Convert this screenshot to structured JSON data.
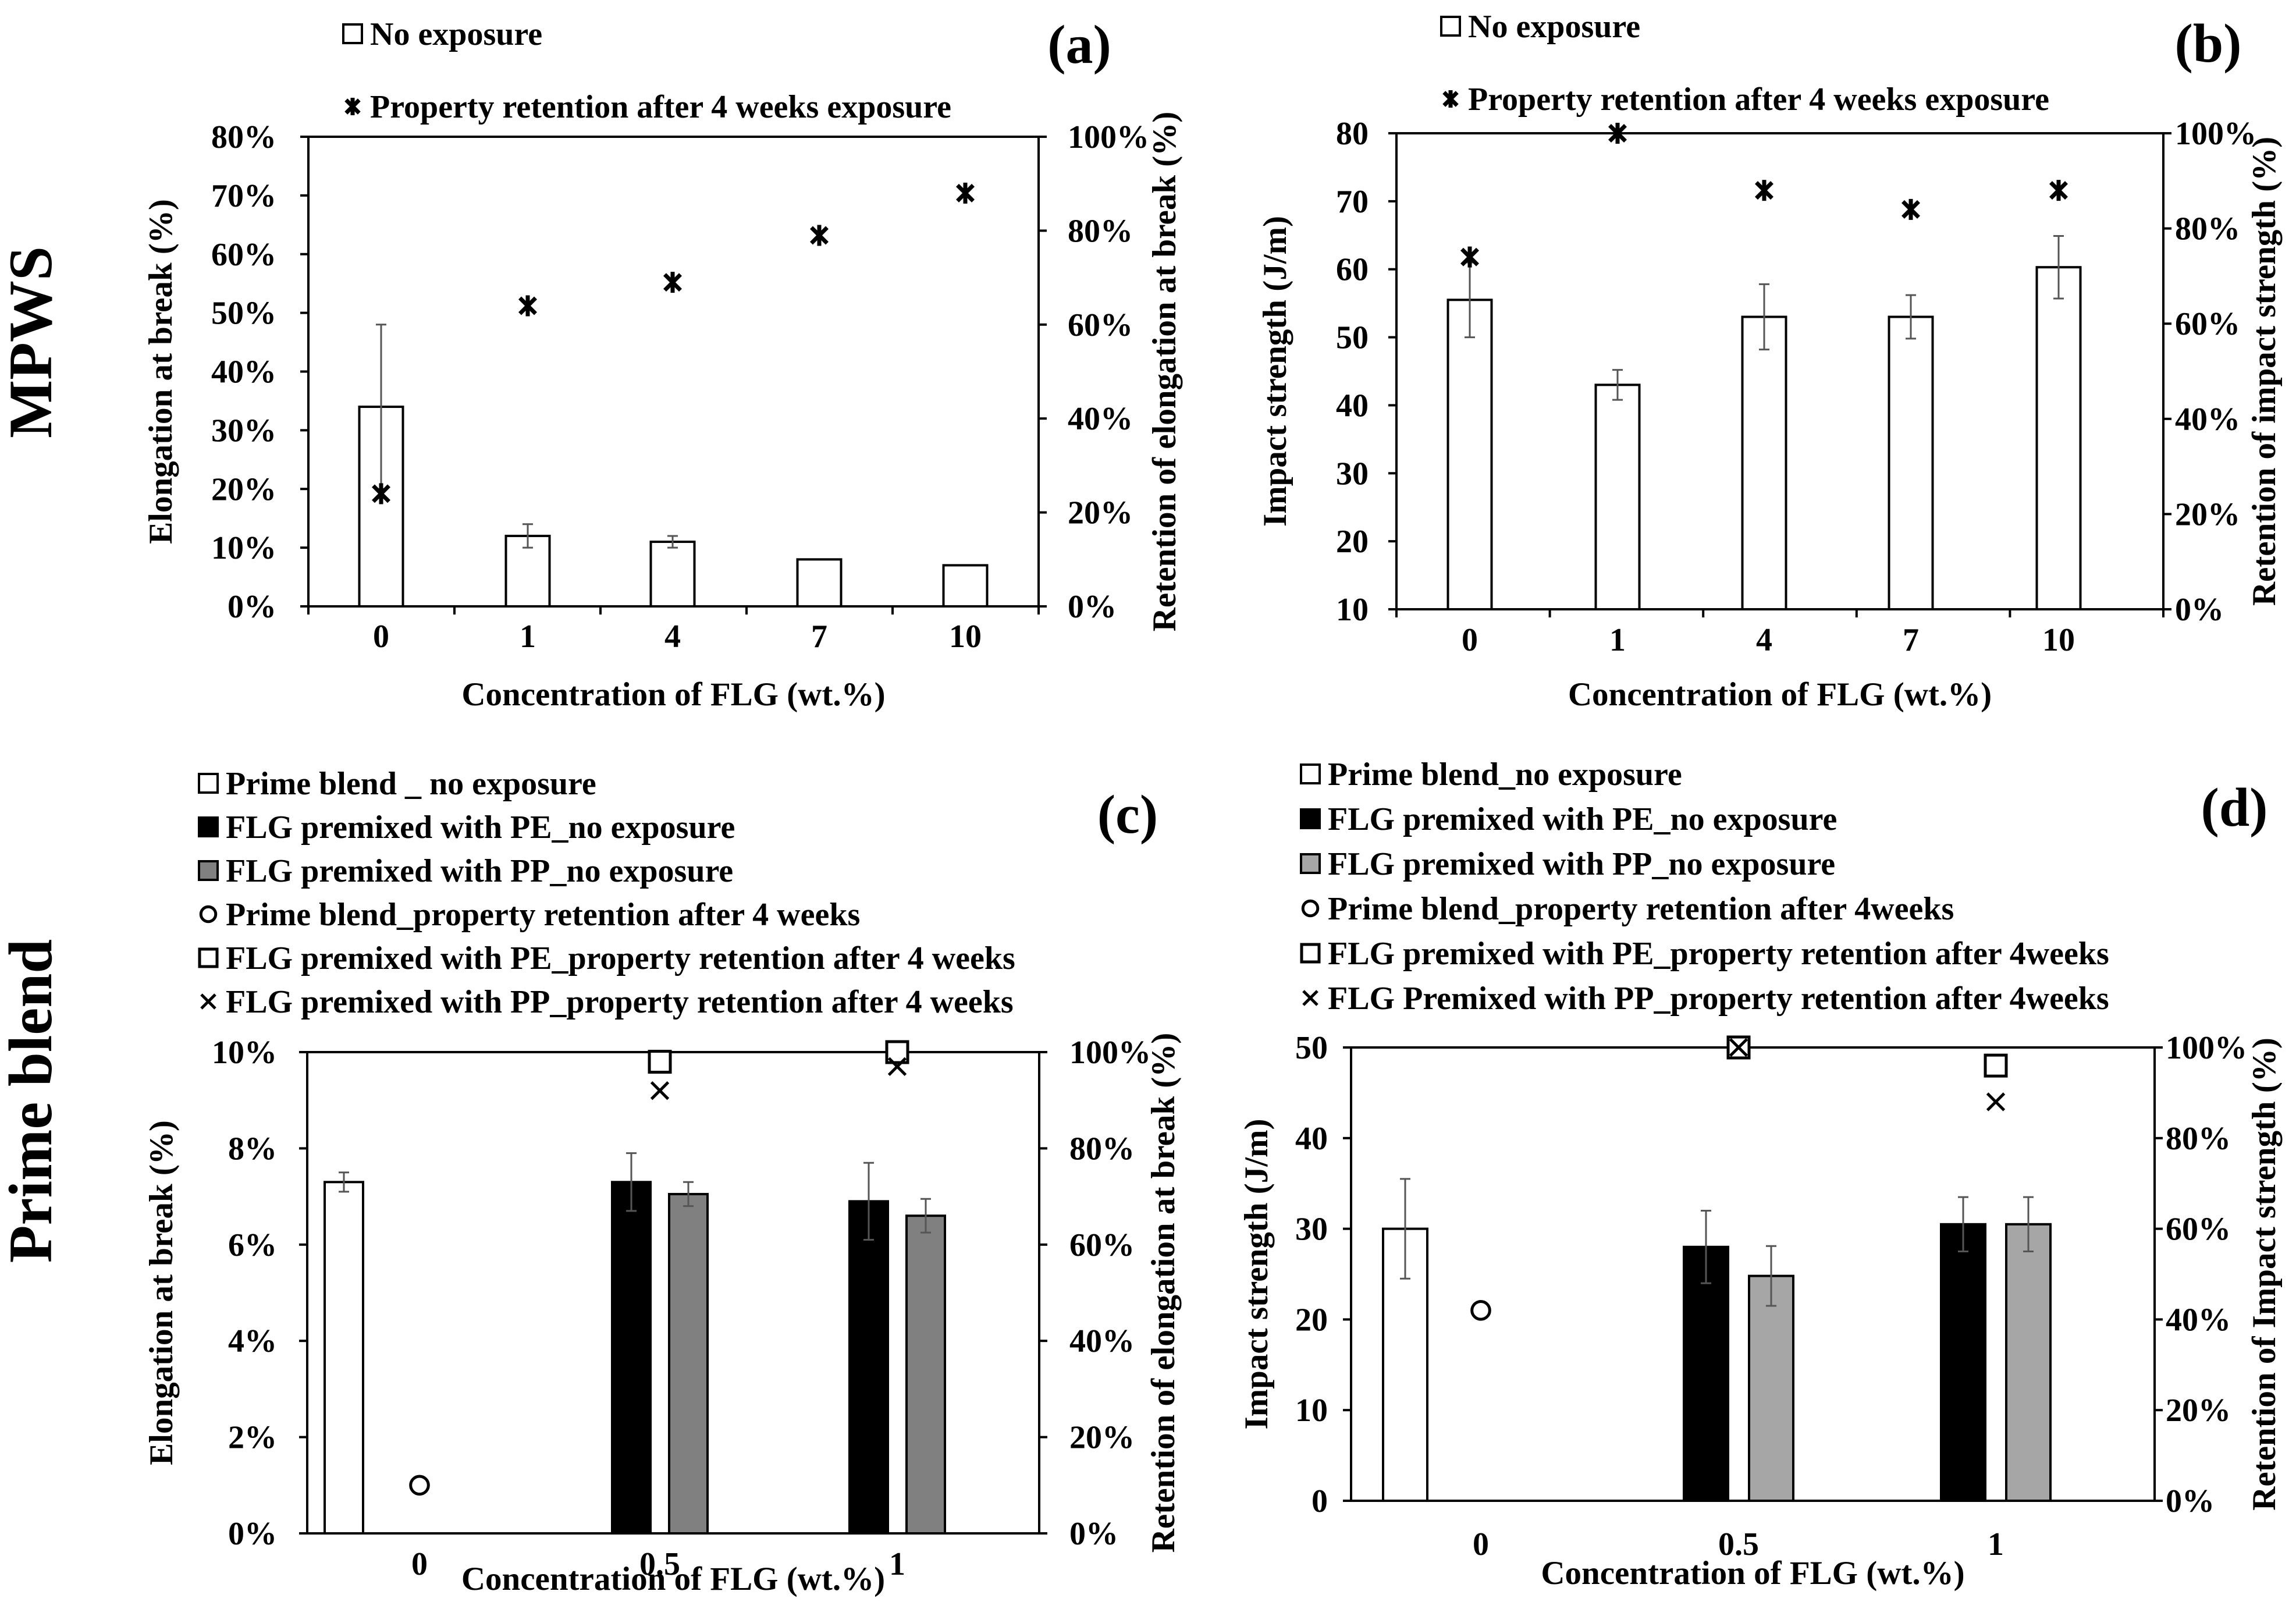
{
  "row_labels": [
    "MPWS",
    "Prime blend"
  ],
  "chart_data": [
    {
      "panel": "(a)",
      "type": "bar",
      "categories": [
        "0",
        "1",
        "4",
        "7",
        "10"
      ],
      "xlabel": "Concentration of FLG (wt.%)",
      "ylabel": "Elongation at break (%)",
      "ylim": [
        0,
        80
      ],
      "yticks": [
        "0%",
        "10%",
        "20%",
        "30%",
        "40%",
        "50%",
        "60%",
        "70%",
        "80%"
      ],
      "y2label": "Retention of elongation at break (%)",
      "y2lim": [
        0,
        100
      ],
      "y2ticks": [
        "0%",
        "20%",
        "40%",
        "60%",
        "80%",
        "100%"
      ],
      "grid": false,
      "legend_position": "top",
      "series": [
        {
          "name": "No exposure",
          "type": "bar",
          "axis": "left",
          "fill": "#ffffff",
          "values": [
            34,
            12,
            11,
            8,
            7
          ],
          "errors": [
            14,
            2,
            1,
            0,
            0
          ]
        },
        {
          "name": "Property retention after 4 weeks exposure",
          "type": "marker",
          "axis": "right",
          "marker": "asterisk",
          "values": [
            24,
            64,
            69,
            79,
            88
          ]
        }
      ]
    },
    {
      "panel": "(b)",
      "type": "bar",
      "categories": [
        "0",
        "1",
        "4",
        "7",
        "10"
      ],
      "xlabel": "Concentration of FLG (wt.%)",
      "ylabel": "Impact strength (J/m)",
      "ylim": [
        10,
        80
      ],
      "yticks": [
        "10",
        "20",
        "30",
        "40",
        "50",
        "60",
        "70",
        "80"
      ],
      "y2label": "Retention of impact strength (%)",
      "y2lim": [
        0,
        100
      ],
      "y2ticks": [
        "0%",
        "20%",
        "40%",
        "60%",
        "80%",
        "100%"
      ],
      "grid": false,
      "legend_position": "top",
      "series": [
        {
          "name": "No exposure",
          "type": "bar",
          "axis": "left",
          "fill": "#ffffff",
          "values": [
            55.5,
            43,
            53,
            53,
            60.3
          ],
          "errors": [
            5.5,
            2.2,
            4.8,
            3.2,
            4.6
          ]
        },
        {
          "name": "Property retention after 4 weeks exposure",
          "type": "marker",
          "axis": "right",
          "marker": "asterisk",
          "values": [
            74,
            100,
            88,
            84,
            88
          ]
        }
      ]
    },
    {
      "panel": "(c)",
      "type": "bar",
      "categories": [
        "0",
        "0.5",
        "1"
      ],
      "xlabel": "Concentration of FLG (wt.%)",
      "ylabel": "Elongation at break (%)",
      "ylim": [
        0,
        10
      ],
      "yticks": [
        "0%",
        "2%",
        "4%",
        "6%",
        "8%",
        "10%"
      ],
      "y2label": "Retention of elongation at break (%)",
      "y2lim": [
        0,
        100
      ],
      "y2ticks": [
        "0%",
        "20%",
        "40%",
        "60%",
        "80%",
        "100%"
      ],
      "grid": false,
      "legend_position": "top",
      "series": [
        {
          "name": "Prime blend _ no exposure",
          "type": "bar",
          "axis": "left",
          "fill": "#ffffff",
          "values": [
            7.3,
            null,
            null
          ],
          "errors": [
            0.2,
            null,
            null
          ]
        },
        {
          "name": "FLG premixed with PE_no exposure",
          "type": "bar",
          "axis": "left",
          "fill": "#000000",
          "values": [
            null,
            7.3,
            6.9
          ],
          "errors": [
            null,
            0.6,
            0.8
          ]
        },
        {
          "name": "FLG premixed with PP_no exposure",
          "type": "bar",
          "axis": "left",
          "fill": "#808080",
          "values": [
            null,
            7.05,
            6.6
          ],
          "errors": [
            null,
            0.25,
            0.35
          ]
        },
        {
          "name": "Prime blend_property retention after 4 weeks",
          "type": "marker",
          "axis": "right",
          "marker": "circle",
          "values": [
            10,
            null,
            null
          ]
        },
        {
          "name": "FLG premixed with PE_property retention after 4 weeks",
          "type": "marker",
          "axis": "right",
          "marker": "square",
          "values": [
            null,
            98,
            100
          ]
        },
        {
          "name": "FLG premixed with PP_property retention after 4 weeks",
          "type": "marker",
          "axis": "right",
          "marker": "x",
          "values": [
            null,
            92,
            97
          ]
        }
      ]
    },
    {
      "panel": "(d)",
      "type": "bar",
      "categories": [
        "0",
        "0.5",
        "1"
      ],
      "xlabel": "Concentration of FLG (wt.%)",
      "ylabel": "Impact strength (J/m)",
      "ylim": [
        0,
        50
      ],
      "yticks": [
        "0",
        "10",
        "20",
        "30",
        "40",
        "50"
      ],
      "y2label": "Retention of Impact strength (%)",
      "y2lim": [
        0,
        100
      ],
      "y2ticks": [
        "0%",
        "20%",
        "40%",
        "60%",
        "80%",
        "100%"
      ],
      "grid": false,
      "legend_position": "top",
      "series": [
        {
          "name": "Prime blend_no exposure",
          "type": "bar",
          "axis": "left",
          "fill": "#ffffff",
          "values": [
            30,
            null,
            null
          ],
          "errors": [
            5.5,
            null,
            null
          ]
        },
        {
          "name": "FLG premixed with PE_no exposure",
          "type": "bar",
          "axis": "left",
          "fill": "#000000",
          "values": [
            null,
            28,
            30.5
          ],
          "errors": [
            null,
            4,
            3
          ]
        },
        {
          "name": "FLG premixed with PP_no exposure",
          "type": "bar",
          "axis": "left",
          "fill": "#a6a6a6",
          "values": [
            null,
            24.8,
            30.5
          ],
          "errors": [
            null,
            3.3,
            3
          ]
        },
        {
          "name": "Prime blend_property retention after 4weeks",
          "type": "marker",
          "axis": "right",
          "marker": "circle",
          "values": [
            42,
            null,
            null
          ]
        },
        {
          "name": "FLG premixed with PE_property retention after 4weeks",
          "type": "marker",
          "axis": "right",
          "marker": "square",
          "values": [
            null,
            100,
            96
          ]
        },
        {
          "name": "FLG Premixed with PP_property retention after 4weeks",
          "type": "marker",
          "axis": "right",
          "marker": "x",
          "values": [
            null,
            100,
            88
          ]
        }
      ]
    }
  ]
}
